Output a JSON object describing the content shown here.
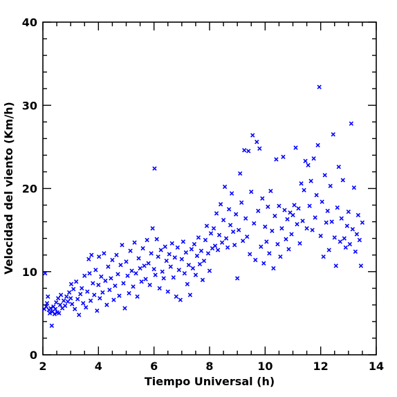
{
  "chart_data": {
    "type": "scatter",
    "title": "",
    "xlabel": "Tiempo Universal (h)",
    "ylabel": "Velocidad del viento (Km/h)",
    "xlim": [
      2,
      14
    ],
    "ylim": [
      0,
      40
    ],
    "x_ticks": [
      "2",
      "4",
      "6",
      "8",
      "10",
      "12",
      "14"
    ],
    "y_ticks": [
      "0",
      "10",
      "20",
      "30",
      "40"
    ],
    "marker": "x",
    "marker_color": "#0000ff",
    "grid": false,
    "series": [
      {
        "points": [
          [
            2.05,
            5.5
          ],
          [
            2.08,
            9.8
          ],
          [
            2.12,
            5.8
          ],
          [
            2.15,
            6.2
          ],
          [
            2.18,
            7.0
          ],
          [
            2.22,
            5.4
          ],
          [
            2.25,
            5.0
          ],
          [
            2.28,
            5.6
          ],
          [
            2.32,
            3.5
          ],
          [
            2.35,
            5.2
          ],
          [
            2.38,
            5.8
          ],
          [
            2.42,
            4.9
          ],
          [
            2.45,
            5.5
          ],
          [
            2.48,
            6.3
          ],
          [
            2.52,
            5.1
          ],
          [
            2.55,
            6.8
          ],
          [
            2.58,
            5.0
          ],
          [
            2.62,
            6.0
          ],
          [
            2.65,
            7.2
          ],
          [
            2.7,
            5.6
          ],
          [
            2.75,
            6.5
          ],
          [
            2.8,
            5.9
          ],
          [
            2.85,
            7.0
          ],
          [
            2.9,
            6.4
          ],
          [
            2.95,
            7.5
          ],
          [
            3.0,
            6.8
          ],
          [
            3.02,
            8.5
          ],
          [
            3.05,
            6.1
          ],
          [
            3.1,
            7.9
          ],
          [
            3.15,
            5.5
          ],
          [
            3.2,
            8.8
          ],
          [
            3.25,
            6.7
          ],
          [
            3.3,
            4.8
          ],
          [
            3.35,
            7.3
          ],
          [
            3.4,
            8.0
          ],
          [
            3.45,
            6.2
          ],
          [
            3.5,
            9.5
          ],
          [
            3.55,
            5.7
          ],
          [
            3.6,
            7.6
          ],
          [
            3.65,
            11.5
          ],
          [
            3.68,
            9.8
          ],
          [
            3.72,
            6.5
          ],
          [
            3.75,
            12.0
          ],
          [
            3.8,
            8.6
          ],
          [
            3.85,
            7.2
          ],
          [
            3.9,
            10.2
          ],
          [
            3.95,
            5.3
          ],
          [
            4.0,
            8.4
          ],
          [
            4.02,
            11.8
          ],
          [
            4.05,
            6.8
          ],
          [
            4.1,
            9.4
          ],
          [
            4.15,
            7.5
          ],
          [
            4.2,
            12.2
          ],
          [
            4.25,
            8.9
          ],
          [
            4.3,
            6.0
          ],
          [
            4.35,
            10.6
          ],
          [
            4.4,
            7.8
          ],
          [
            4.45,
            9.2
          ],
          [
            4.5,
            11.4
          ],
          [
            4.55,
            6.6
          ],
          [
            4.6,
            8.3
          ],
          [
            4.65,
            12.0
          ],
          [
            4.7,
            9.7
          ],
          [
            4.75,
            7.1
          ],
          [
            4.8,
            10.8
          ],
          [
            4.85,
            13.2
          ],
          [
            4.9,
            8.6
          ],
          [
            4.95,
            5.6
          ],
          [
            5.0,
            11.2
          ],
          [
            5.05,
            9.5
          ],
          [
            5.1,
            7.4
          ],
          [
            5.15,
            12.5
          ],
          [
            5.2,
            10.1
          ],
          [
            5.25,
            8.2
          ],
          [
            5.3,
            13.5
          ],
          [
            5.35,
            9.8
          ],
          [
            5.4,
            7.0
          ],
          [
            5.45,
            11.6
          ],
          [
            5.5,
            10.4
          ],
          [
            5.55,
            8.8
          ],
          [
            5.6,
            12.8
          ],
          [
            5.65,
            10.7
          ],
          [
            5.7,
            9.1
          ],
          [
            5.75,
            13.8
          ],
          [
            5.8,
            11.0
          ],
          [
            5.85,
            8.4
          ],
          [
            5.9,
            12.2
          ],
          [
            5.95,
            15.2
          ],
          [
            6.0,
            10.3
          ],
          [
            6.02,
            22.4
          ],
          [
            6.05,
            9.6
          ],
          [
            6.1,
            13.9
          ],
          [
            6.15,
            11.8
          ],
          [
            6.2,
            8.0
          ],
          [
            6.25,
            12.6
          ],
          [
            6.3,
            10.0
          ],
          [
            6.35,
            9.2
          ],
          [
            6.4,
            13.0
          ],
          [
            6.45,
            11.3
          ],
          [
            6.5,
            7.6
          ],
          [
            6.55,
            12.1
          ],
          [
            6.6,
            10.6
          ],
          [
            6.65,
            13.4
          ],
          [
            6.7,
            9.3
          ],
          [
            6.75,
            11.7
          ],
          [
            6.8,
            7.0
          ],
          [
            6.85,
            12.9
          ],
          [
            6.9,
            10.2
          ],
          [
            6.95,
            6.6
          ],
          [
            7.0,
            11.5
          ],
          [
            7.05,
            13.6
          ],
          [
            7.1,
            9.8
          ],
          [
            7.15,
            12.3
          ],
          [
            7.2,
            8.5
          ],
          [
            7.25,
            10.8
          ],
          [
            7.3,
            7.2
          ],
          [
            7.35,
            12.7
          ],
          [
            7.4,
            10.4
          ],
          [
            7.45,
            13.3
          ],
          [
            7.5,
            9.6
          ],
          [
            7.55,
            11.9
          ],
          [
            7.6,
            14.1
          ],
          [
            7.65,
            10.9
          ],
          [
            7.7,
            12.5
          ],
          [
            7.75,
            9.0
          ],
          [
            7.8,
            11.3
          ],
          [
            7.85,
            13.8
          ],
          [
            7.9,
            15.5
          ],
          [
            7.95,
            12.2
          ],
          [
            8.0,
            10.1
          ],
          [
            8.05,
            14.6
          ],
          [
            8.1,
            12.8
          ],
          [
            8.15,
            15.2
          ],
          [
            8.2,
            13.1
          ],
          [
            8.25,
            17.0
          ],
          [
            8.3,
            12.6
          ],
          [
            8.35,
            14.4
          ],
          [
            8.4,
            18.1
          ],
          [
            8.45,
            13.5
          ],
          [
            8.5,
            16.2
          ],
          [
            8.55,
            20.2
          ],
          [
            8.6,
            14.0
          ],
          [
            8.65,
            12.9
          ],
          [
            8.7,
            17.5
          ],
          [
            8.75,
            15.6
          ],
          [
            8.8,
            19.4
          ],
          [
            8.85,
            14.8
          ],
          [
            8.9,
            13.2
          ],
          [
            8.95,
            16.9
          ],
          [
            9.0,
            9.2
          ],
          [
            9.05,
            15.0
          ],
          [
            9.1,
            21.8
          ],
          [
            9.15,
            18.3
          ],
          [
            9.2,
            13.7
          ],
          [
            9.25,
            24.6
          ],
          [
            9.3,
            16.4
          ],
          [
            9.35,
            14.2
          ],
          [
            9.4,
            24.5
          ],
          [
            9.45,
            12.1
          ],
          [
            9.5,
            19.6
          ],
          [
            9.55,
            26.4
          ],
          [
            9.6,
            15.8
          ],
          [
            9.65,
            11.4
          ],
          [
            9.7,
            25.6
          ],
          [
            9.75,
            17.3
          ],
          [
            9.8,
            24.8
          ],
          [
            9.85,
            13.0
          ],
          [
            9.9,
            18.8
          ],
          [
            9.95,
            11.0
          ],
          [
            10.0,
            15.4
          ],
          [
            10.05,
            13.6
          ],
          [
            10.1,
            17.8
          ],
          [
            10.15,
            12.2
          ],
          [
            10.2,
            19.7
          ],
          [
            10.25,
            14.9
          ],
          [
            10.3,
            10.4
          ],
          [
            10.35,
            16.7
          ],
          [
            10.4,
            23.5
          ],
          [
            10.45,
            13.3
          ],
          [
            10.5,
            17.9
          ],
          [
            10.55,
            11.8
          ],
          [
            10.6,
            15.2
          ],
          [
            10.65,
            23.8
          ],
          [
            10.7,
            17.4
          ],
          [
            10.75,
            13.9
          ],
          [
            10.8,
            16.3
          ],
          [
            10.85,
            12.7
          ],
          [
            10.9,
            17.1
          ],
          [
            10.95,
            14.5
          ],
          [
            11.0,
            16.8
          ],
          [
            11.05,
            18.0
          ],
          [
            11.1,
            24.9
          ],
          [
            11.15,
            15.7
          ],
          [
            11.2,
            17.6
          ],
          [
            11.25,
            13.4
          ],
          [
            11.3,
            20.6
          ],
          [
            11.35,
            16.1
          ],
          [
            11.4,
            19.8
          ],
          [
            11.45,
            23.3
          ],
          [
            11.5,
            15.2
          ],
          [
            11.55,
            22.8
          ],
          [
            11.6,
            17.9
          ],
          [
            11.65,
            20.9
          ],
          [
            11.7,
            15.0
          ],
          [
            11.75,
            23.6
          ],
          [
            11.8,
            16.5
          ],
          [
            11.85,
            19.2
          ],
          [
            11.9,
            25.2
          ],
          [
            11.95,
            32.2
          ],
          [
            12.0,
            14.3
          ],
          [
            12.05,
            18.4
          ],
          [
            12.1,
            11.8
          ],
          [
            12.15,
            21.6
          ],
          [
            12.2,
            15.9
          ],
          [
            12.25,
            17.3
          ],
          [
            12.3,
            12.6
          ],
          [
            12.35,
            20.3
          ],
          [
            12.4,
            16.0
          ],
          [
            12.45,
            26.5
          ],
          [
            12.5,
            14.1
          ],
          [
            12.55,
            10.7
          ],
          [
            12.6,
            17.7
          ],
          [
            12.65,
            22.6
          ],
          [
            12.7,
            13.6
          ],
          [
            12.75,
            16.4
          ],
          [
            12.8,
            21.0
          ],
          [
            12.85,
            14.0
          ],
          [
            12.9,
            12.9
          ],
          [
            12.95,
            15.5
          ],
          [
            13.0,
            17.2
          ],
          [
            13.05,
            13.3
          ],
          [
            13.1,
            27.8
          ],
          [
            13.15,
            15.1
          ],
          [
            13.2,
            20.1
          ],
          [
            13.25,
            12.4
          ],
          [
            13.3,
            14.5
          ],
          [
            13.35,
            16.8
          ],
          [
            13.4,
            13.8
          ],
          [
            13.45,
            10.7
          ],
          [
            13.5,
            15.9
          ]
        ]
      }
    ]
  }
}
